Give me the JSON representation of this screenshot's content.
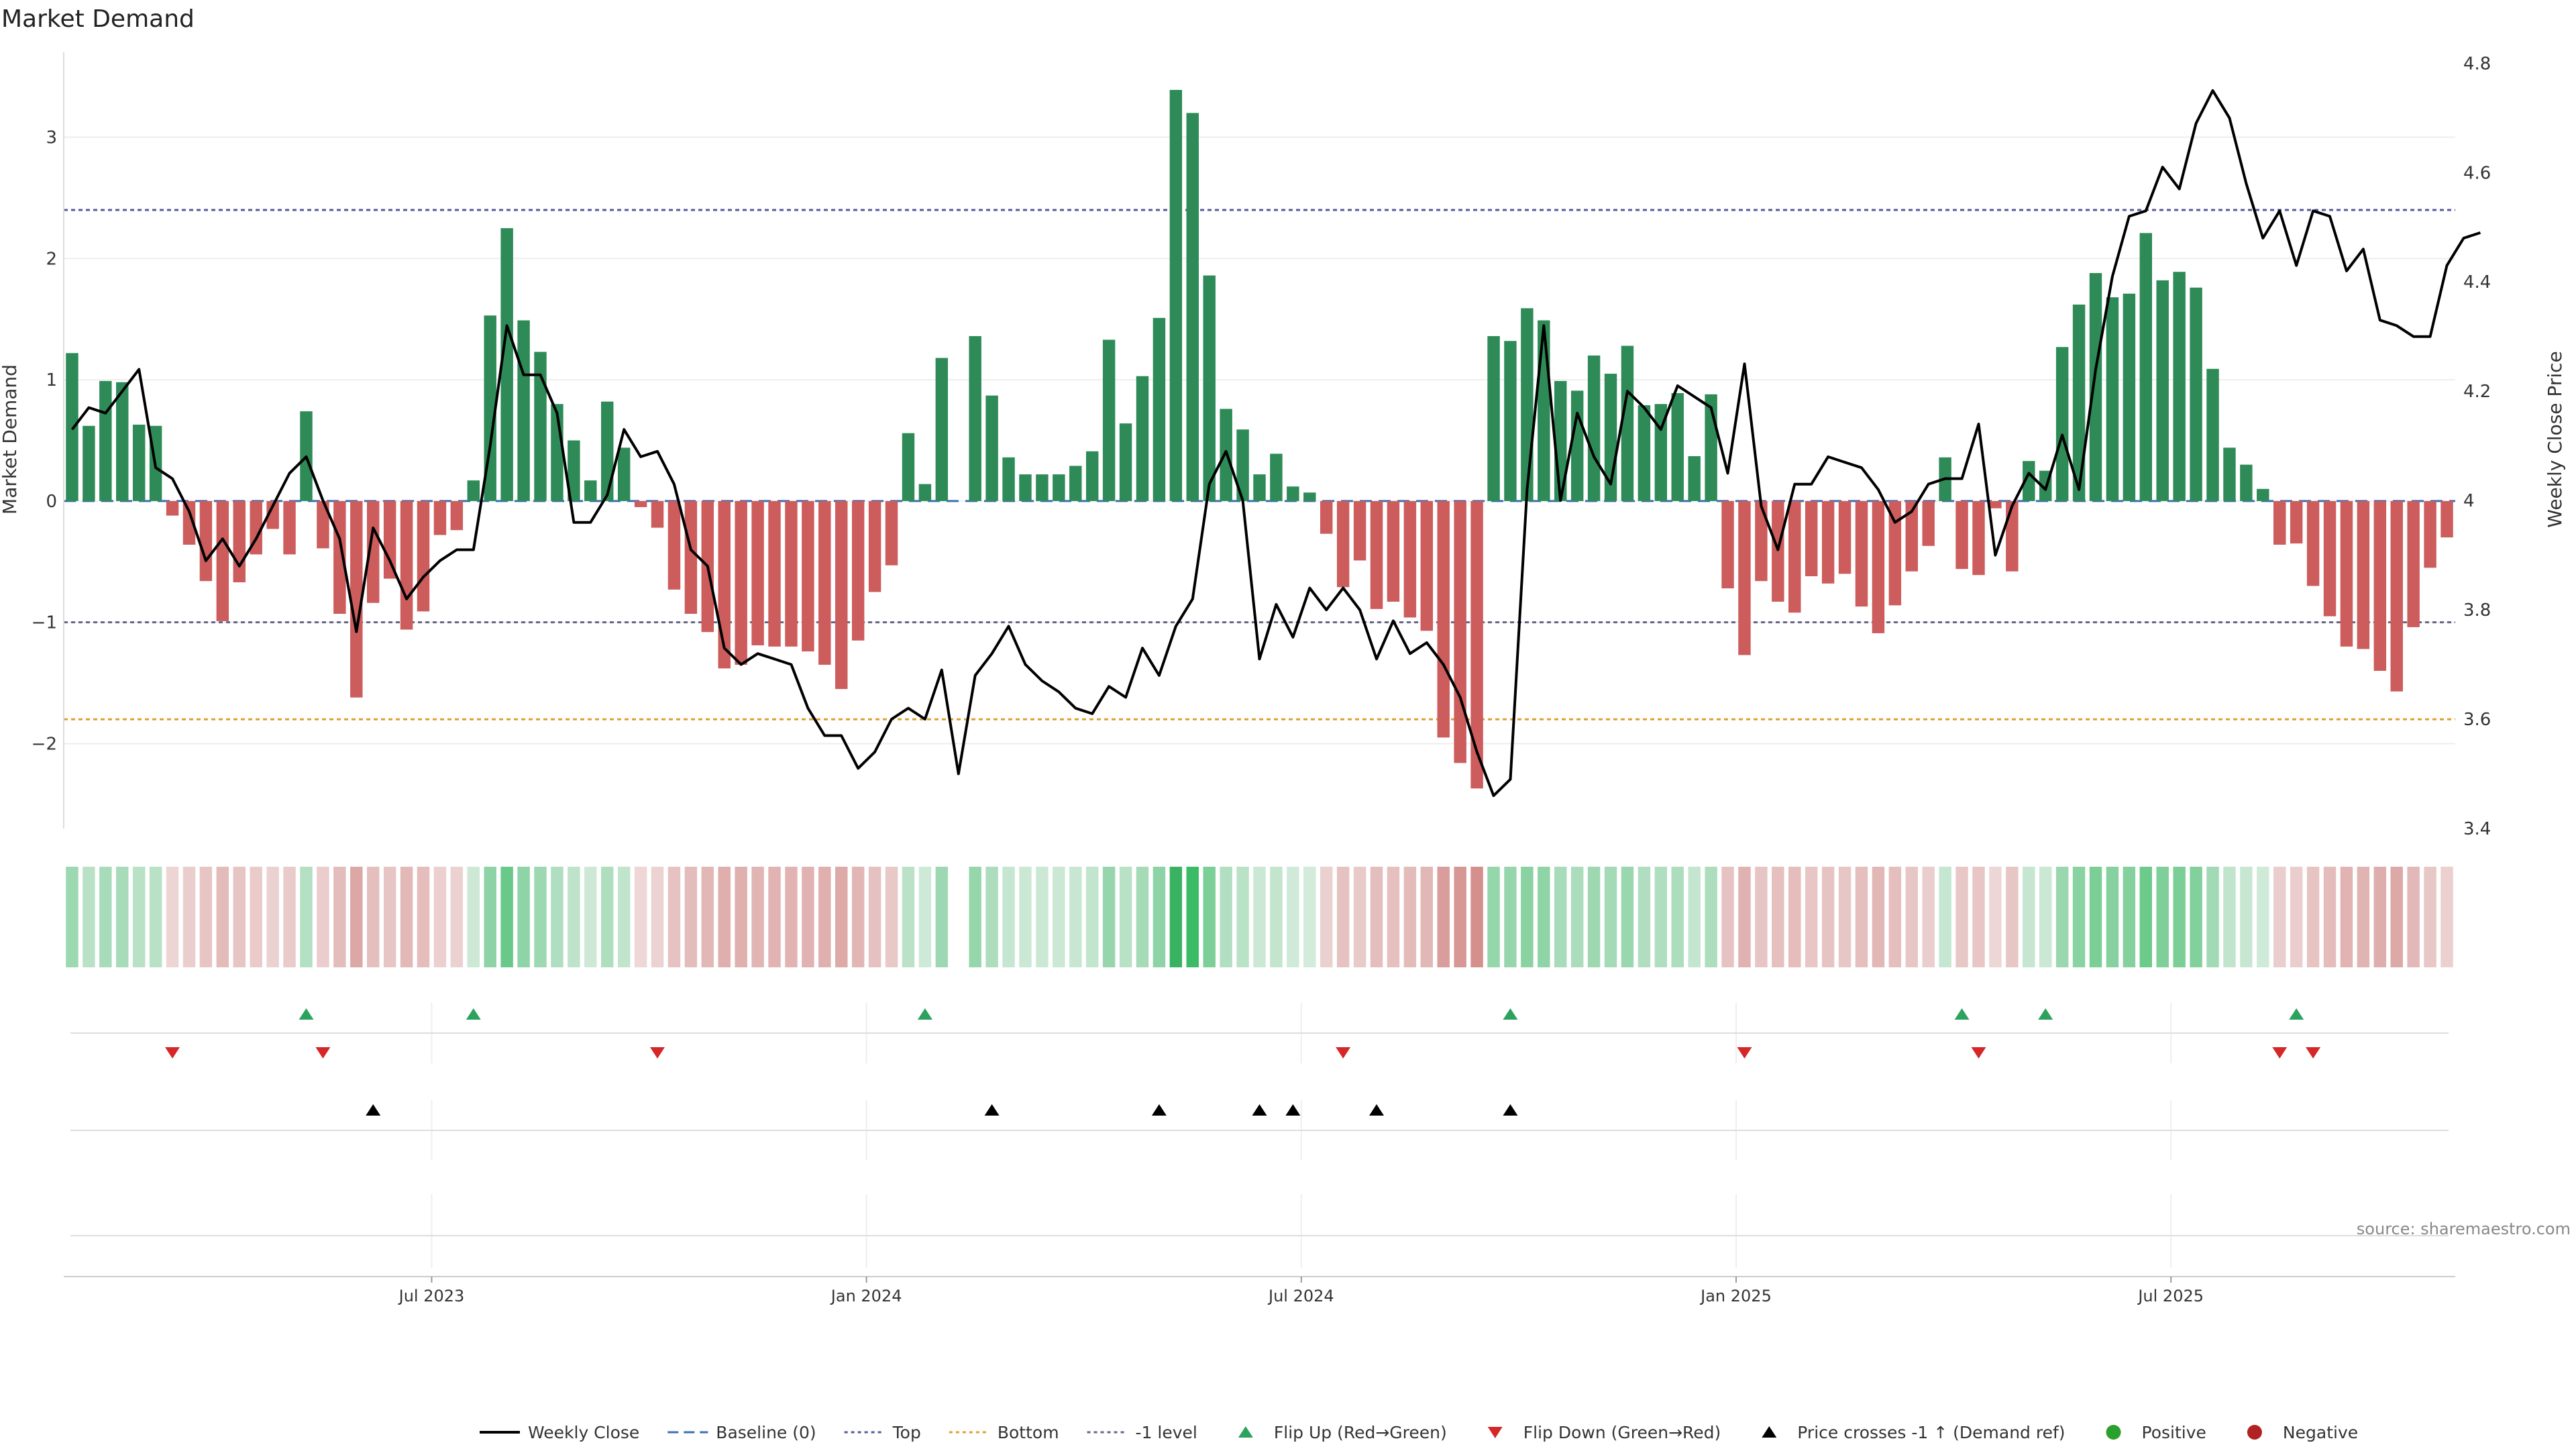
{
  "chart_data": {
    "type": "bar",
    "title": "Market Demand",
    "ylabel_left": "Market Demand",
    "ylabel_right": "Weekly Close Price",
    "ylim_left": [
      -2.7,
      3.7
    ],
    "ylim_right": [
      3.4,
      4.82
    ],
    "yticks_left": [
      -2,
      -1,
      0,
      1,
      2,
      3
    ],
    "yticks_left_labels": [
      "−2",
      "−1",
      "0",
      "1",
      "2",
      "3"
    ],
    "yticks_right": [
      3.4,
      3.6,
      3.8,
      4,
      4.2,
      4.4,
      4.6,
      4.8
    ],
    "yticks_right_labels": [
      "3.4",
      "3.6",
      "3.8",
      "4",
      "4.2",
      "4.4",
      "4.6",
      "4.8"
    ],
    "xtick_labels": [
      "Jul 2023",
      "Jan 2024",
      "Jul 2024",
      "Jan 2025",
      "Jul 2025"
    ],
    "xtick_weeks": [
      22,
      48,
      74,
      100,
      126
    ],
    "reference_lines": {
      "top": 2.4,
      "bottom": -1.8,
      "minus_one": -1.0,
      "baseline": 0
    },
    "weekly_demand": [
      1.22,
      0.62,
      0.99,
      0.98,
      0.63,
      0.62,
      -0.12,
      -0.36,
      -0.66,
      -0.99,
      -0.67,
      -0.44,
      -0.23,
      -0.44,
      0.74,
      -0.39,
      -0.93,
      -1.62,
      -0.84,
      -0.64,
      -1.06,
      -0.91,
      -0.28,
      -0.24,
      0.17,
      1.53,
      2.25,
      1.49,
      1.23,
      0.8,
      0.5,
      0.17,
      0.82,
      0.44,
      -0.05,
      -0.22,
      -0.73,
      -0.93,
      -1.08,
      -1.38,
      -1.35,
      -1.19,
      -1.2,
      -1.2,
      -1.24,
      -1.35,
      -1.55,
      -1.15,
      -0.75,
      -0.53,
      0.56,
      0.14,
      1.18,
      null,
      1.36,
      0.87,
      0.36,
      0.22,
      0.22,
      0.22,
      0.29,
      0.41,
      1.33,
      0.64,
      1.03,
      1.51,
      3.39,
      3.2,
      1.86,
      0.76,
      0.59,
      0.22,
      0.39,
      0.12,
      0.07,
      -0.27,
      -0.71,
      -0.49,
      -0.89,
      -0.83,
      -0.96,
      -1.07,
      -1.95,
      -2.16,
      -2.37,
      1.36,
      1.32,
      1.59,
      1.49,
      0.99,
      0.91,
      1.2,
      1.05,
      1.28,
      0.79,
      0.8,
      0.89,
      0.37,
      0.88,
      -0.72,
      -1.27,
      -0.66,
      -0.83,
      -0.92,
      -0.62,
      -0.68,
      -0.6,
      -0.87,
      -1.09,
      -0.86,
      -0.58,
      -0.37,
      0.36,
      -0.56,
      -0.61,
      -0.06,
      -0.58,
      0.33,
      0.25,
      1.27,
      1.62,
      1.88,
      1.68,
      1.71,
      2.21,
      1.82,
      1.89,
      1.76,
      1.09,
      0.44,
      0.3,
      0.1,
      -0.36,
      -0.35,
      -0.7,
      -0.95,
      -1.2,
      -1.22,
      -1.4,
      -1.57,
      -1.04,
      -0.55,
      -0.3
    ],
    "weekly_close": [
      4.13,
      4.17,
      4.16,
      4.2,
      4.24,
      4.06,
      4.04,
      3.98,
      3.89,
      3.93,
      3.88,
      3.93,
      3.99,
      4.05,
      4.08,
      4.0,
      3.93,
      3.76,
      3.95,
      3.89,
      3.82,
      3.86,
      3.89,
      3.91,
      3.91,
      4.1,
      4.32,
      4.23,
      4.23,
      4.16,
      3.96,
      3.96,
      4.01,
      4.13,
      4.08,
      4.09,
      4.03,
      3.91,
      3.88,
      3.73,
      3.7,
      3.72,
      3.71,
      3.7,
      3.62,
      3.57,
      3.57,
      3.51,
      3.54,
      3.6,
      3.62,
      3.6,
      3.69,
      3.5,
      3.68,
      3.72,
      3.77,
      3.7,
      3.67,
      3.65,
      3.62,
      3.61,
      3.66,
      3.64,
      3.73,
      3.68,
      3.77,
      3.82,
      4.03,
      4.09,
      4.0,
      3.71,
      3.81,
      3.75,
      3.84,
      3.8,
      3.84,
      3.8,
      3.71,
      3.78,
      3.72,
      3.74,
      3.7,
      3.64,
      3.54,
      3.46,
      3.49,
      4.02,
      4.32,
      4.0,
      4.16,
      4.08,
      4.03,
      4.2,
      4.17,
      4.13,
      4.21,
      4.19,
      4.17,
      4.05,
      4.25,
      3.99,
      3.91,
      4.03,
      4.03,
      4.08,
      4.07,
      4.06,
      4.02,
      3.96,
      3.98,
      4.03,
      4.04,
      4.04,
      4.14,
      3.9,
      3.99,
      4.05,
      4.02,
      4.12,
      4.02,
      4.24,
      4.41,
      4.52,
      4.53,
      4.61,
      4.57,
      4.69,
      4.75,
      4.7,
      4.58,
      4.48,
      4.53,
      4.43,
      4.53,
      4.52,
      4.42,
      4.46,
      4.33,
      4.32,
      4.3,
      4.3,
      4.43,
      4.48,
      4.49
    ],
    "flip_up_weeks": [
      14,
      24,
      51,
      86,
      113,
      118,
      133
    ],
    "flip_down_weeks": [
      6,
      15,
      35,
      76,
      100,
      114,
      132,
      134
    ],
    "price_cross_weeks": [
      18,
      55,
      65,
      71,
      73,
      78,
      86
    ],
    "legend": [
      {
        "label": "Weekly Close",
        "kind": "solid",
        "color": "#000000"
      },
      {
        "label": "Baseline (0)",
        "kind": "dashed",
        "color": "#3b6fb6"
      },
      {
        "label": "Top",
        "kind": "dotted",
        "color": "#56589e"
      },
      {
        "label": "Bottom",
        "kind": "dotted",
        "color": "#e0a030"
      },
      {
        "label": "-1 level",
        "kind": "dotted",
        "color": "#666688"
      },
      {
        "label": "Flip Up (Red→Green)",
        "kind": "tri-up",
        "color": "#2ca25f"
      },
      {
        "label": "Flip Down (Green→Red)",
        "kind": "tri-down",
        "color": "#d62728"
      },
      {
        "label": "Price crosses -1 ↑ (Demand ref)",
        "kind": "tri-up",
        "color": "#000000"
      },
      {
        "label": "Positive",
        "kind": "dot",
        "color": "#2ca02c"
      },
      {
        "label": "Negative",
        "kind": "dot",
        "color": "#b22222"
      }
    ],
    "source": "source: sharemaestro.com"
  },
  "colors": {
    "positive": "#2e8b57",
    "negative": "#cd5c5c",
    "price": "#000000",
    "flip_up": "#2ca25f",
    "flip_down": "#d62728"
  }
}
